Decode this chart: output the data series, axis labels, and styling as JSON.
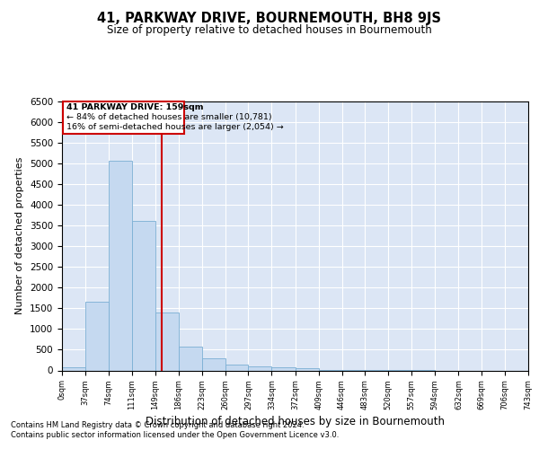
{
  "title": "41, PARKWAY DRIVE, BOURNEMOUTH, BH8 9JS",
  "subtitle": "Size of property relative to detached houses in Bournemouth",
  "xlabel": "Distribution of detached houses by size in Bournemouth",
  "ylabel": "Number of detached properties",
  "bar_color": "#c5d9f0",
  "bar_edge_color": "#7bafd4",
  "background_color": "#dce6f5",
  "grid_color": "#ffffff",
  "vline_x": 159,
  "vline_color": "#cc0000",
  "annotation_box_color": "#cc0000",
  "annotation_text_line1": "41 PARKWAY DRIVE: 159sqm",
  "annotation_text_line2": "← 84% of detached houses are smaller (10,781)",
  "annotation_text_line3": "16% of semi-detached houses are larger (2,054) →",
  "bin_edges": [
    0,
    37,
    74,
    111,
    149,
    186,
    223,
    260,
    297,
    334,
    372,
    409,
    446,
    483,
    520,
    557,
    594,
    632,
    669,
    706,
    743
  ],
  "bar_heights": [
    80,
    1650,
    5050,
    3600,
    1400,
    580,
    290,
    150,
    100,
    70,
    50,
    20,
    8,
    3,
    2,
    1,
    0,
    0,
    0,
    0
  ],
  "ylim": [
    0,
    6500
  ],
  "yticks": [
    0,
    500,
    1000,
    1500,
    2000,
    2500,
    3000,
    3500,
    4000,
    4500,
    5000,
    5500,
    6000,
    6500
  ],
  "footnote1": "Contains HM Land Registry data © Crown copyright and database right 2024.",
  "footnote2": "Contains public sector information licensed under the Open Government Licence v3.0."
}
